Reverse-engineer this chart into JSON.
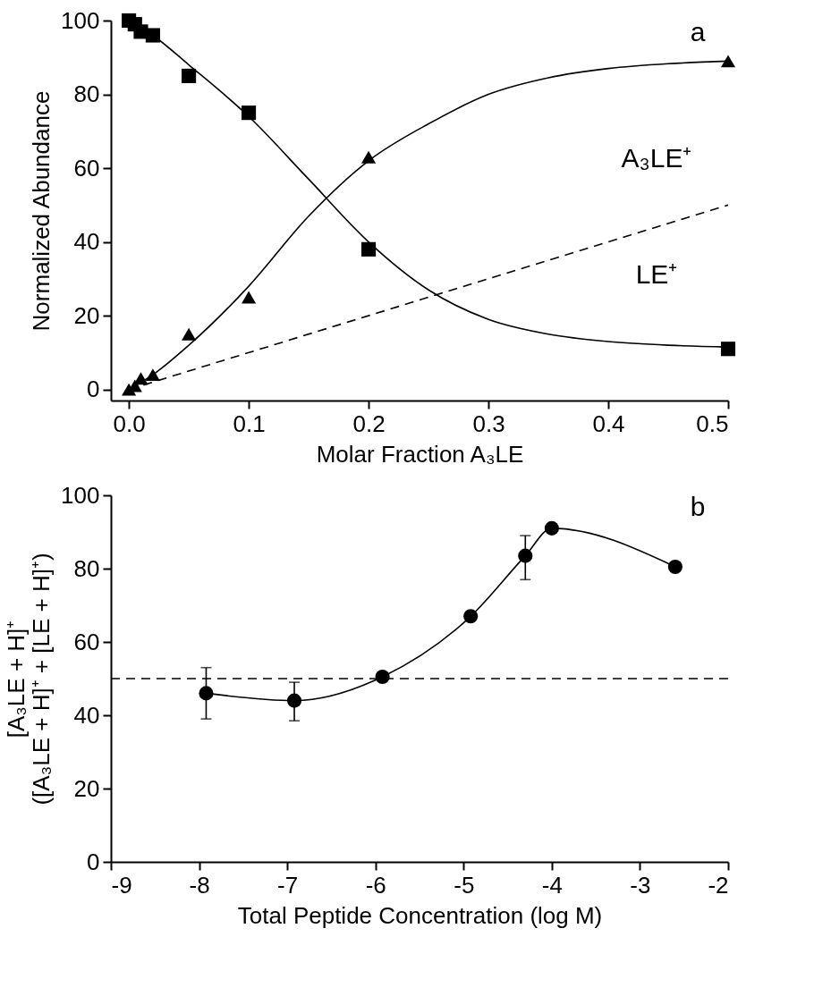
{
  "chart_data": [
    {
      "type": "scatter",
      "xlabel": "Molar Fraction A₃LE",
      "ylabel": "Normalized Abundance",
      "xlim": [
        -0.015,
        0.5
      ],
      "ylim": [
        -3,
        100
      ],
      "xticks": [
        {
          "value": 0,
          "label": "0.0"
        },
        0.1,
        0.2,
        0.3,
        0.4,
        0.5
      ],
      "yticks": [
        0,
        20,
        40,
        60,
        80,
        100
      ],
      "grid": false,
      "series": [
        {
          "type": "line",
          "name": "LE⁺",
          "color": "#000000",
          "marker": "none",
          "line_style": "solid",
          "x": [
            0,
            0.02,
            0.05,
            0.1,
            0.15,
            0.2,
            0.25,
            0.3,
            0.35,
            0.4,
            0.45,
            0.5
          ],
          "values": [
            100,
            96,
            88,
            74,
            57,
            40,
            27,
            19,
            15,
            13,
            12,
            11.5
          ]
        },
        {
          "type": "line",
          "name": "A₃LE⁺",
          "color": "#000000",
          "marker": "none",
          "line_style": "solid",
          "x": [
            0,
            0.02,
            0.05,
            0.1,
            0.15,
            0.2,
            0.25,
            0.3,
            0.35,
            0.4,
            0.45,
            0.5
          ],
          "values": [
            0,
            4,
            12,
            28,
            47,
            62,
            72,
            80,
            84.5,
            87,
            88.3,
            89
          ]
        },
        {
          "type": "line",
          "color": "#000000",
          "marker": "none",
          "line_style": "dashed",
          "x": [
            0,
            0.5
          ],
          "values": [
            0,
            50
          ]
        },
        {
          "color": "#000000",
          "marker": "square",
          "x": [
            0,
            0.005,
            0.01,
            0.02,
            0.05,
            0.1,
            0.2,
            0.5
          ],
          "values": [
            100,
            99,
            97,
            96,
            85,
            75,
            38,
            11
          ]
        },
        {
          "color": "#000000",
          "marker": "triangle",
          "x": [
            0,
            0.005,
            0.01,
            0.02,
            0.05,
            0.1,
            0.2,
            0.5
          ],
          "values": [
            0,
            1,
            3,
            4,
            15,
            25,
            63,
            89
          ]
        }
      ],
      "annotations": [
        "a"
      ]
    },
    {
      "type": "line",
      "xlabel": "Total Peptide Concentration (log M)",
      "ylabel": "[A₃LE + H]⁺\n([A₃LE + H]⁺ + [LE + H]⁺)",
      "xlim": [
        -9,
        -2
      ],
      "ylim": [
        0,
        100
      ],
      "xticks": [
        -9,
        -8,
        -7,
        -6,
        -5,
        -4,
        -3,
        -2
      ],
      "yticks": [
        0,
        20,
        40,
        60,
        80,
        100
      ],
      "grid": false,
      "series": [
        {
          "color": "#000000",
          "marker": "circle",
          "line_style": "solid",
          "x": [
            -7.92,
            -6.92,
            -5.92,
            -4.92,
            -4.3,
            -4.0,
            -2.6
          ],
          "values": [
            46,
            44,
            50.5,
            67,
            83.5,
            91,
            80.5
          ],
          "errors": [
            [
              39,
              53
            ],
            [
              38.5,
              49
            ],
            null,
            null,
            [
              77,
              89
            ],
            null,
            null
          ]
        }
      ],
      "ref_lines": [
        {
          "axis": "y",
          "value": 50,
          "line_style": "dashed",
          "color": "#000000"
        }
      ],
      "annotations": [
        "b"
      ]
    }
  ]
}
